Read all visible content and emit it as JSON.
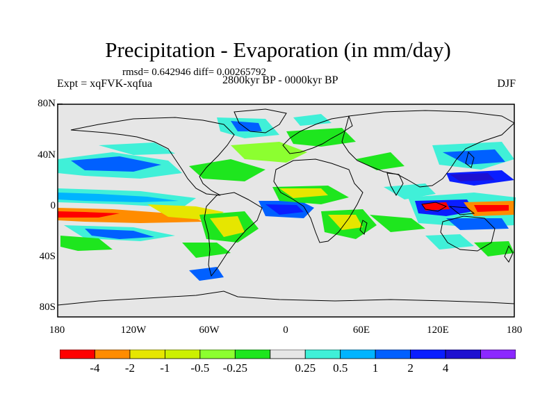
{
  "title": "Precipitation - Evaporation (in mm/day)",
  "stats": "rmsd= 0.642946 diff= 0.00265792",
  "period": "2800kyr BP - 0000kyr BP",
  "experiment": "Expt = xqFVK-xqfua",
  "season": "DJF",
  "lat_labels": [
    "80N",
    "40N",
    "0",
    "40S",
    "80S"
  ],
  "lon_labels": [
    "180",
    "120W",
    "60W",
    "0",
    "60E",
    "120E",
    "180"
  ],
  "colorbar": {
    "colors": [
      "#ff0000",
      "#ff8c00",
      "#e6e600",
      "#ccf000",
      "#8cff30",
      "#1ee61e",
      "#e6e6e6",
      "#40f0d8",
      "#00b4ff",
      "#0060ff",
      "#0a1eff",
      "#1e10d0",
      "#8c28ff"
    ],
    "labels": [
      "-4",
      "-2",
      "-1",
      "-0.5",
      "-0.25",
      "0.25",
      "0.5",
      "1",
      "2",
      "4"
    ]
  },
  "background_color": "#e6e6e6"
}
